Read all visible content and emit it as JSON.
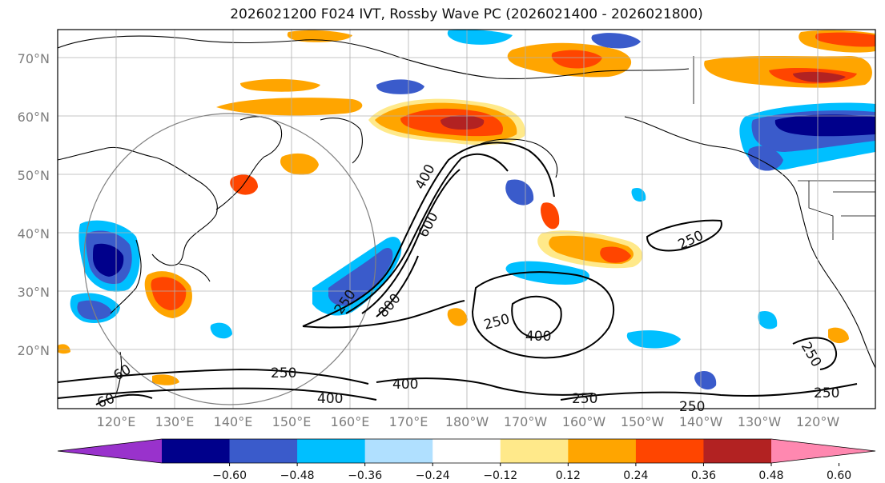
{
  "title": "2026021200 F024 IVT, Rossby Wave PC (2026021400 - 2026021800)",
  "map": {
    "lat_ticks": [
      "70°N",
      "60°N",
      "50°N",
      "40°N",
      "30°N",
      "20°N"
    ],
    "lon_ticks": [
      "120°E",
      "130°E",
      "140°E",
      "150°E",
      "160°E",
      "170°E",
      "180°W",
      "170°W",
      "160°W",
      "150°W",
      "140°W",
      "130°W",
      "120°W"
    ],
    "contour_labels": [
      "400",
      "600",
      "250",
      "800",
      "250",
      "400",
      "250",
      "250",
      "250",
      "400",
      "400",
      "250",
      "250",
      "250",
      "60",
      "60"
    ]
  },
  "colorbar": {
    "labels": [
      "−0.60",
      "−0.48",
      "−0.36",
      "−0.24",
      "−0.12",
      "0.12",
      "0.24",
      "0.36",
      "0.48",
      "0.60"
    ],
    "colors": [
      "#9932CC",
      "#00008B",
      "#3A5BCB",
      "#00BFFF",
      "#B0E0FF",
      "#FFFFFF",
      "#FFE98A",
      "#FFA500",
      "#FF4500",
      "#B22222",
      "#FF88B0"
    ]
  },
  "colors": {
    "contour": "#000000",
    "coast": "#000000",
    "grid": "#b0b0b0",
    "circle": "#808080"
  }
}
